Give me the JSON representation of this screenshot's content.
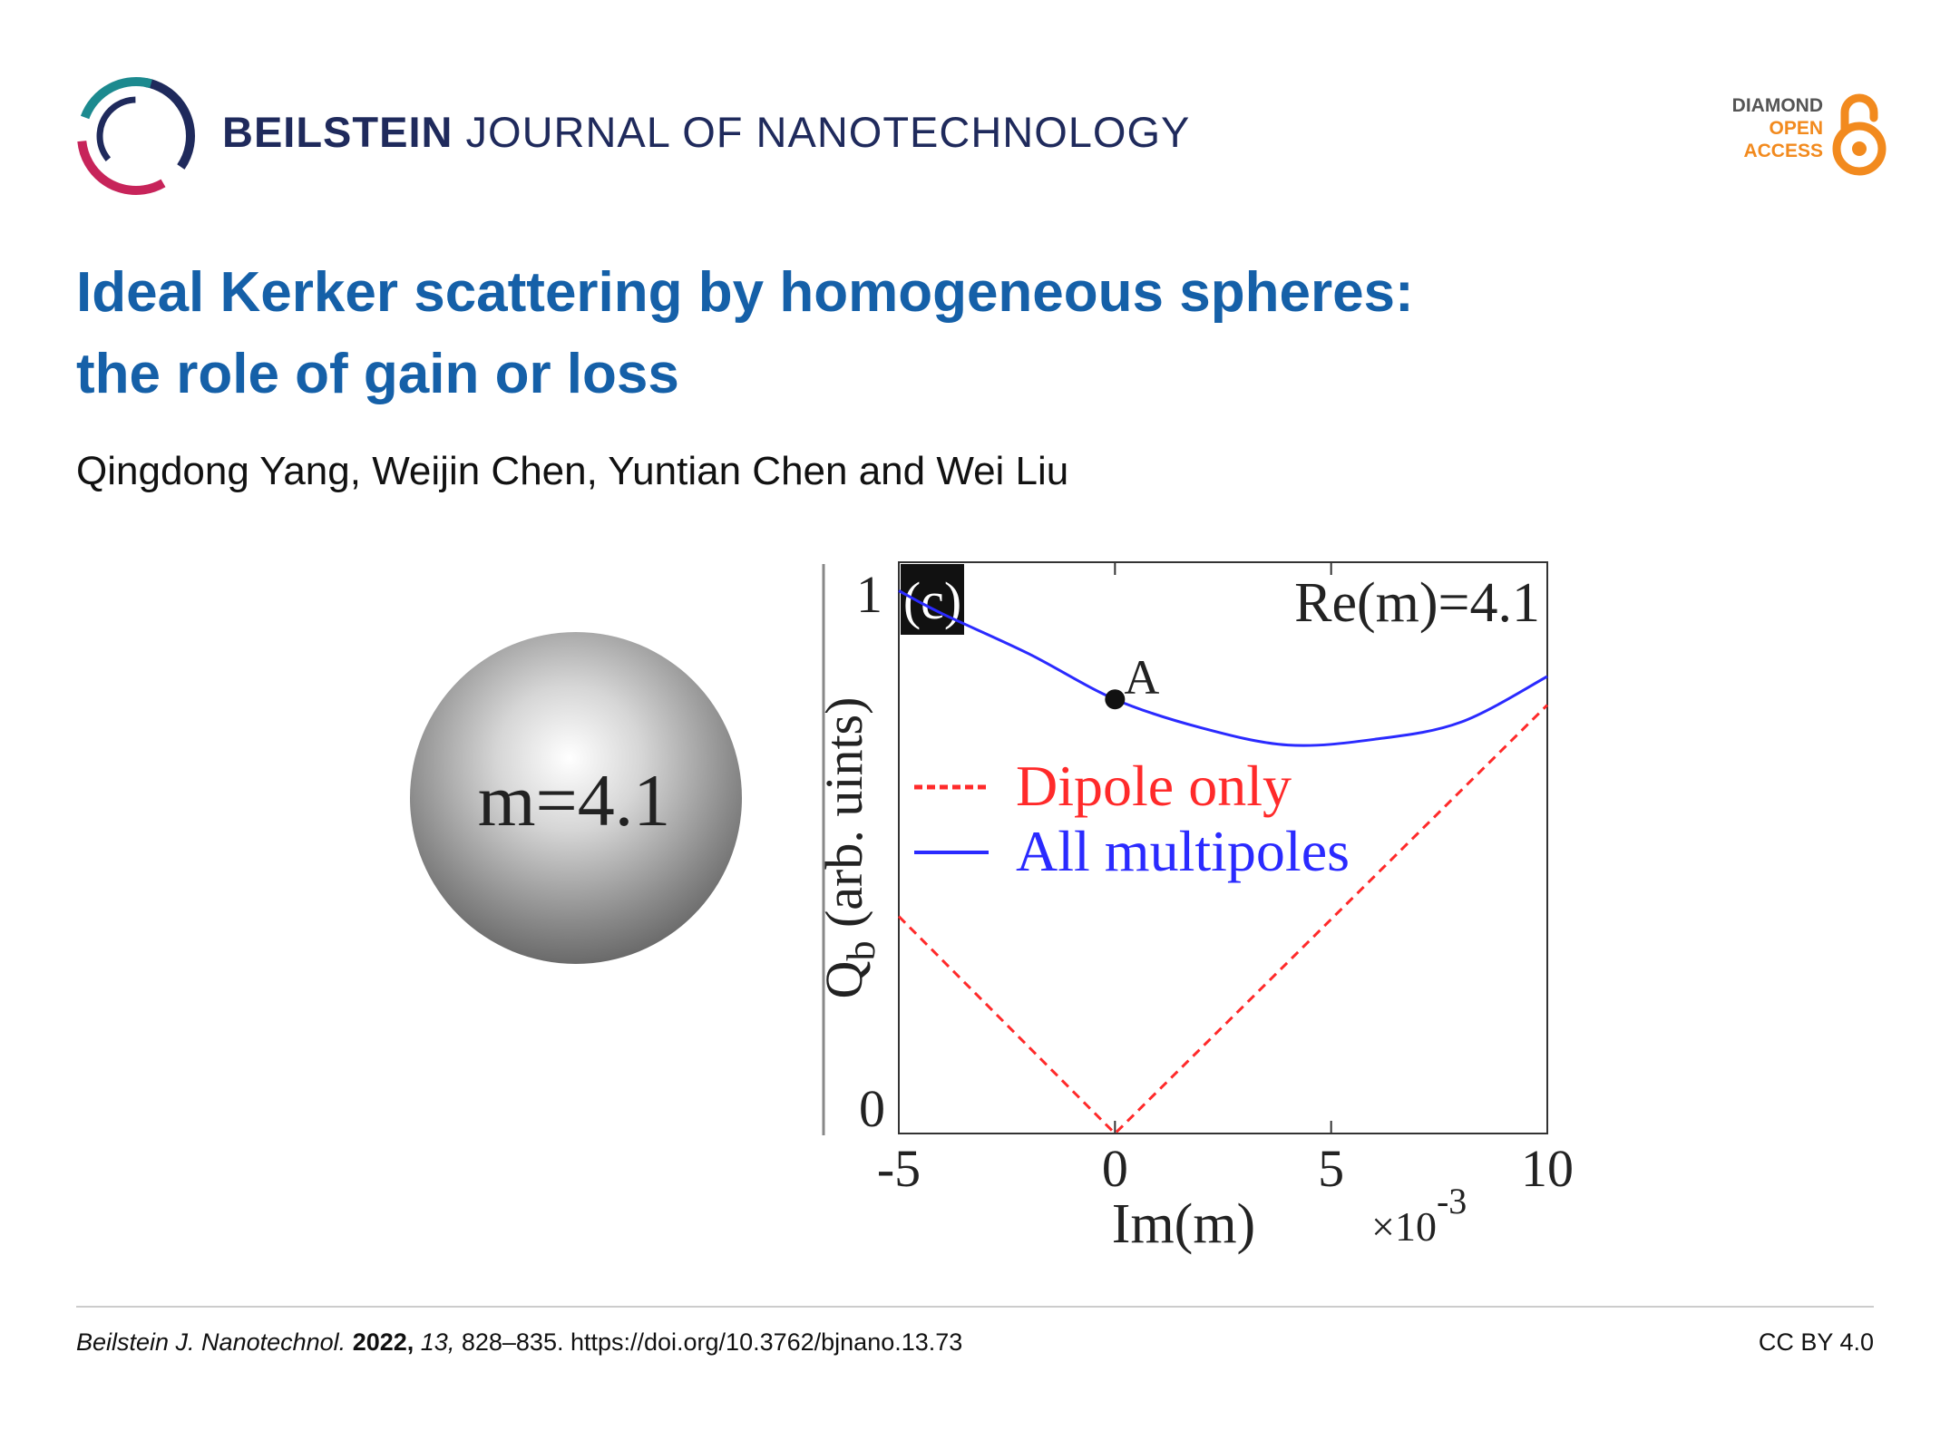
{
  "header": {
    "journal_strong": "BEILSTEIN",
    "journal_light": "JOURNAL OF NANOTECHNOLOGY",
    "oa_line1": "DIAMOND",
    "oa_line2": "OPEN",
    "oa_line3": "ACCESS",
    "logo_icon": "beilstein-logo-icon",
    "lock_icon": "open-access-lock-icon"
  },
  "paper": {
    "title_line1": "Ideal Kerker scattering by homogeneous spheres:",
    "title_line2": "the role of gain or loss",
    "authors": "Qingdong Yang, Weijin Chen, Yuntian Chen and Wei Liu"
  },
  "figure": {
    "sphere_label": "m=4.1",
    "panel_label": "(c)",
    "annotation": "Re(m)=4.1",
    "point_label": "A",
    "y_label": "Q",
    "y_label_sub": "b",
    "y_label_rest": " (arb. uints)",
    "x_label": "Im(m)",
    "x_multiplier": "×10",
    "x_multiplier_exp": "-3",
    "y_ticks": [
      "0",
      "1"
    ],
    "x_ticks": [
      "-5",
      "0",
      "5",
      "10"
    ]
  },
  "chart_data": {
    "type": "line",
    "title": "",
    "xlabel": "Im(m) ×10^-3",
    "ylabel": "Qb (arb. uints)",
    "xlim": [
      -5,
      10
    ],
    "ylim": [
      0,
      1
    ],
    "legend_position": "center",
    "series": [
      {
        "name": "Dipole only",
        "style": "dashed",
        "color": "#ff2a2a",
        "x": [
          -5,
          0,
          10
        ],
        "y": [
          0.38,
          0.0,
          0.75
        ]
      },
      {
        "name": "All multipoles",
        "style": "solid",
        "color": "#2a2aff",
        "x": [
          -5,
          -4,
          -2,
          0,
          2,
          4,
          6,
          8,
          10
        ],
        "y": [
          0.95,
          0.91,
          0.84,
          0.76,
          0.71,
          0.68,
          0.69,
          0.72,
          0.8
        ]
      }
    ],
    "points": [
      {
        "label": "A",
        "x": 0,
        "y": 0.76
      }
    ]
  },
  "footer": {
    "journal_abbrev": "Beilstein J. Nanotechnol.",
    "year": "2022,",
    "volume": "13,",
    "pages_doi": "828–835. https://doi.org/10.3762/bjnano.13.73",
    "license": "CC BY 4.0"
  }
}
